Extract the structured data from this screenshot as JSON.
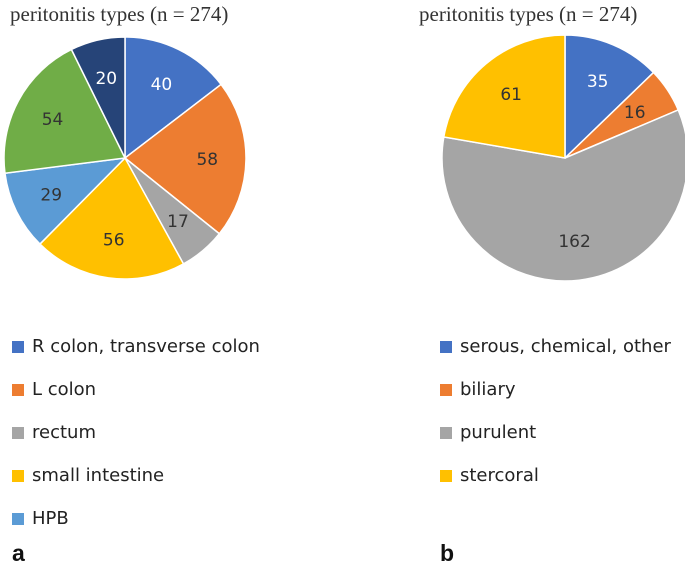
{
  "chart_data": [
    {
      "type": "pie",
      "panel": "a",
      "title": "peritonitis types (n = 274)",
      "categories": [
        "R colon, transverse colon",
        "L colon",
        "rectum",
        "small intestine",
        "HPB",
        "",
        ""
      ],
      "values": [
        40,
        58,
        17,
        56,
        29,
        54,
        20
      ],
      "colors": [
        "#4472C4",
        "#ED7D31",
        "#A5A5A5",
        "#FFC000",
        "#5B9BD5",
        "#70AD47",
        "#264478"
      ],
      "legend_position": "bottom",
      "legend": [
        {
          "label": "R colon, transverse colon",
          "color": "#4472C4"
        },
        {
          "label": "L colon",
          "color": "#ED7D31"
        },
        {
          "label": "rectum",
          "color": "#A5A5A5"
        },
        {
          "label": "small intestine",
          "color": "#FFC000"
        },
        {
          "label": "HPB",
          "color": "#5B9BD5"
        }
      ]
    },
    {
      "type": "pie",
      "panel": "b",
      "title": "peritonitis types (n = 274)",
      "categories": [
        "serous, chemical, other",
        "biliary",
        "purulent",
        "stercoral"
      ],
      "values": [
        35,
        16,
        162,
        61
      ],
      "colors": [
        "#4472C4",
        "#ED7D31",
        "#A5A5A5",
        "#FFC000"
      ],
      "legend_position": "bottom",
      "legend": [
        {
          "label": "serous, chemical, other",
          "color": "#4472C4"
        },
        {
          "label": "biliary",
          "color": "#ED7D31"
        },
        {
          "label": "purulent",
          "color": "#A5A5A5"
        },
        {
          "label": "stercoral",
          "color": "#FFC000"
        }
      ]
    }
  ],
  "panel_letters": [
    "a",
    "b"
  ]
}
